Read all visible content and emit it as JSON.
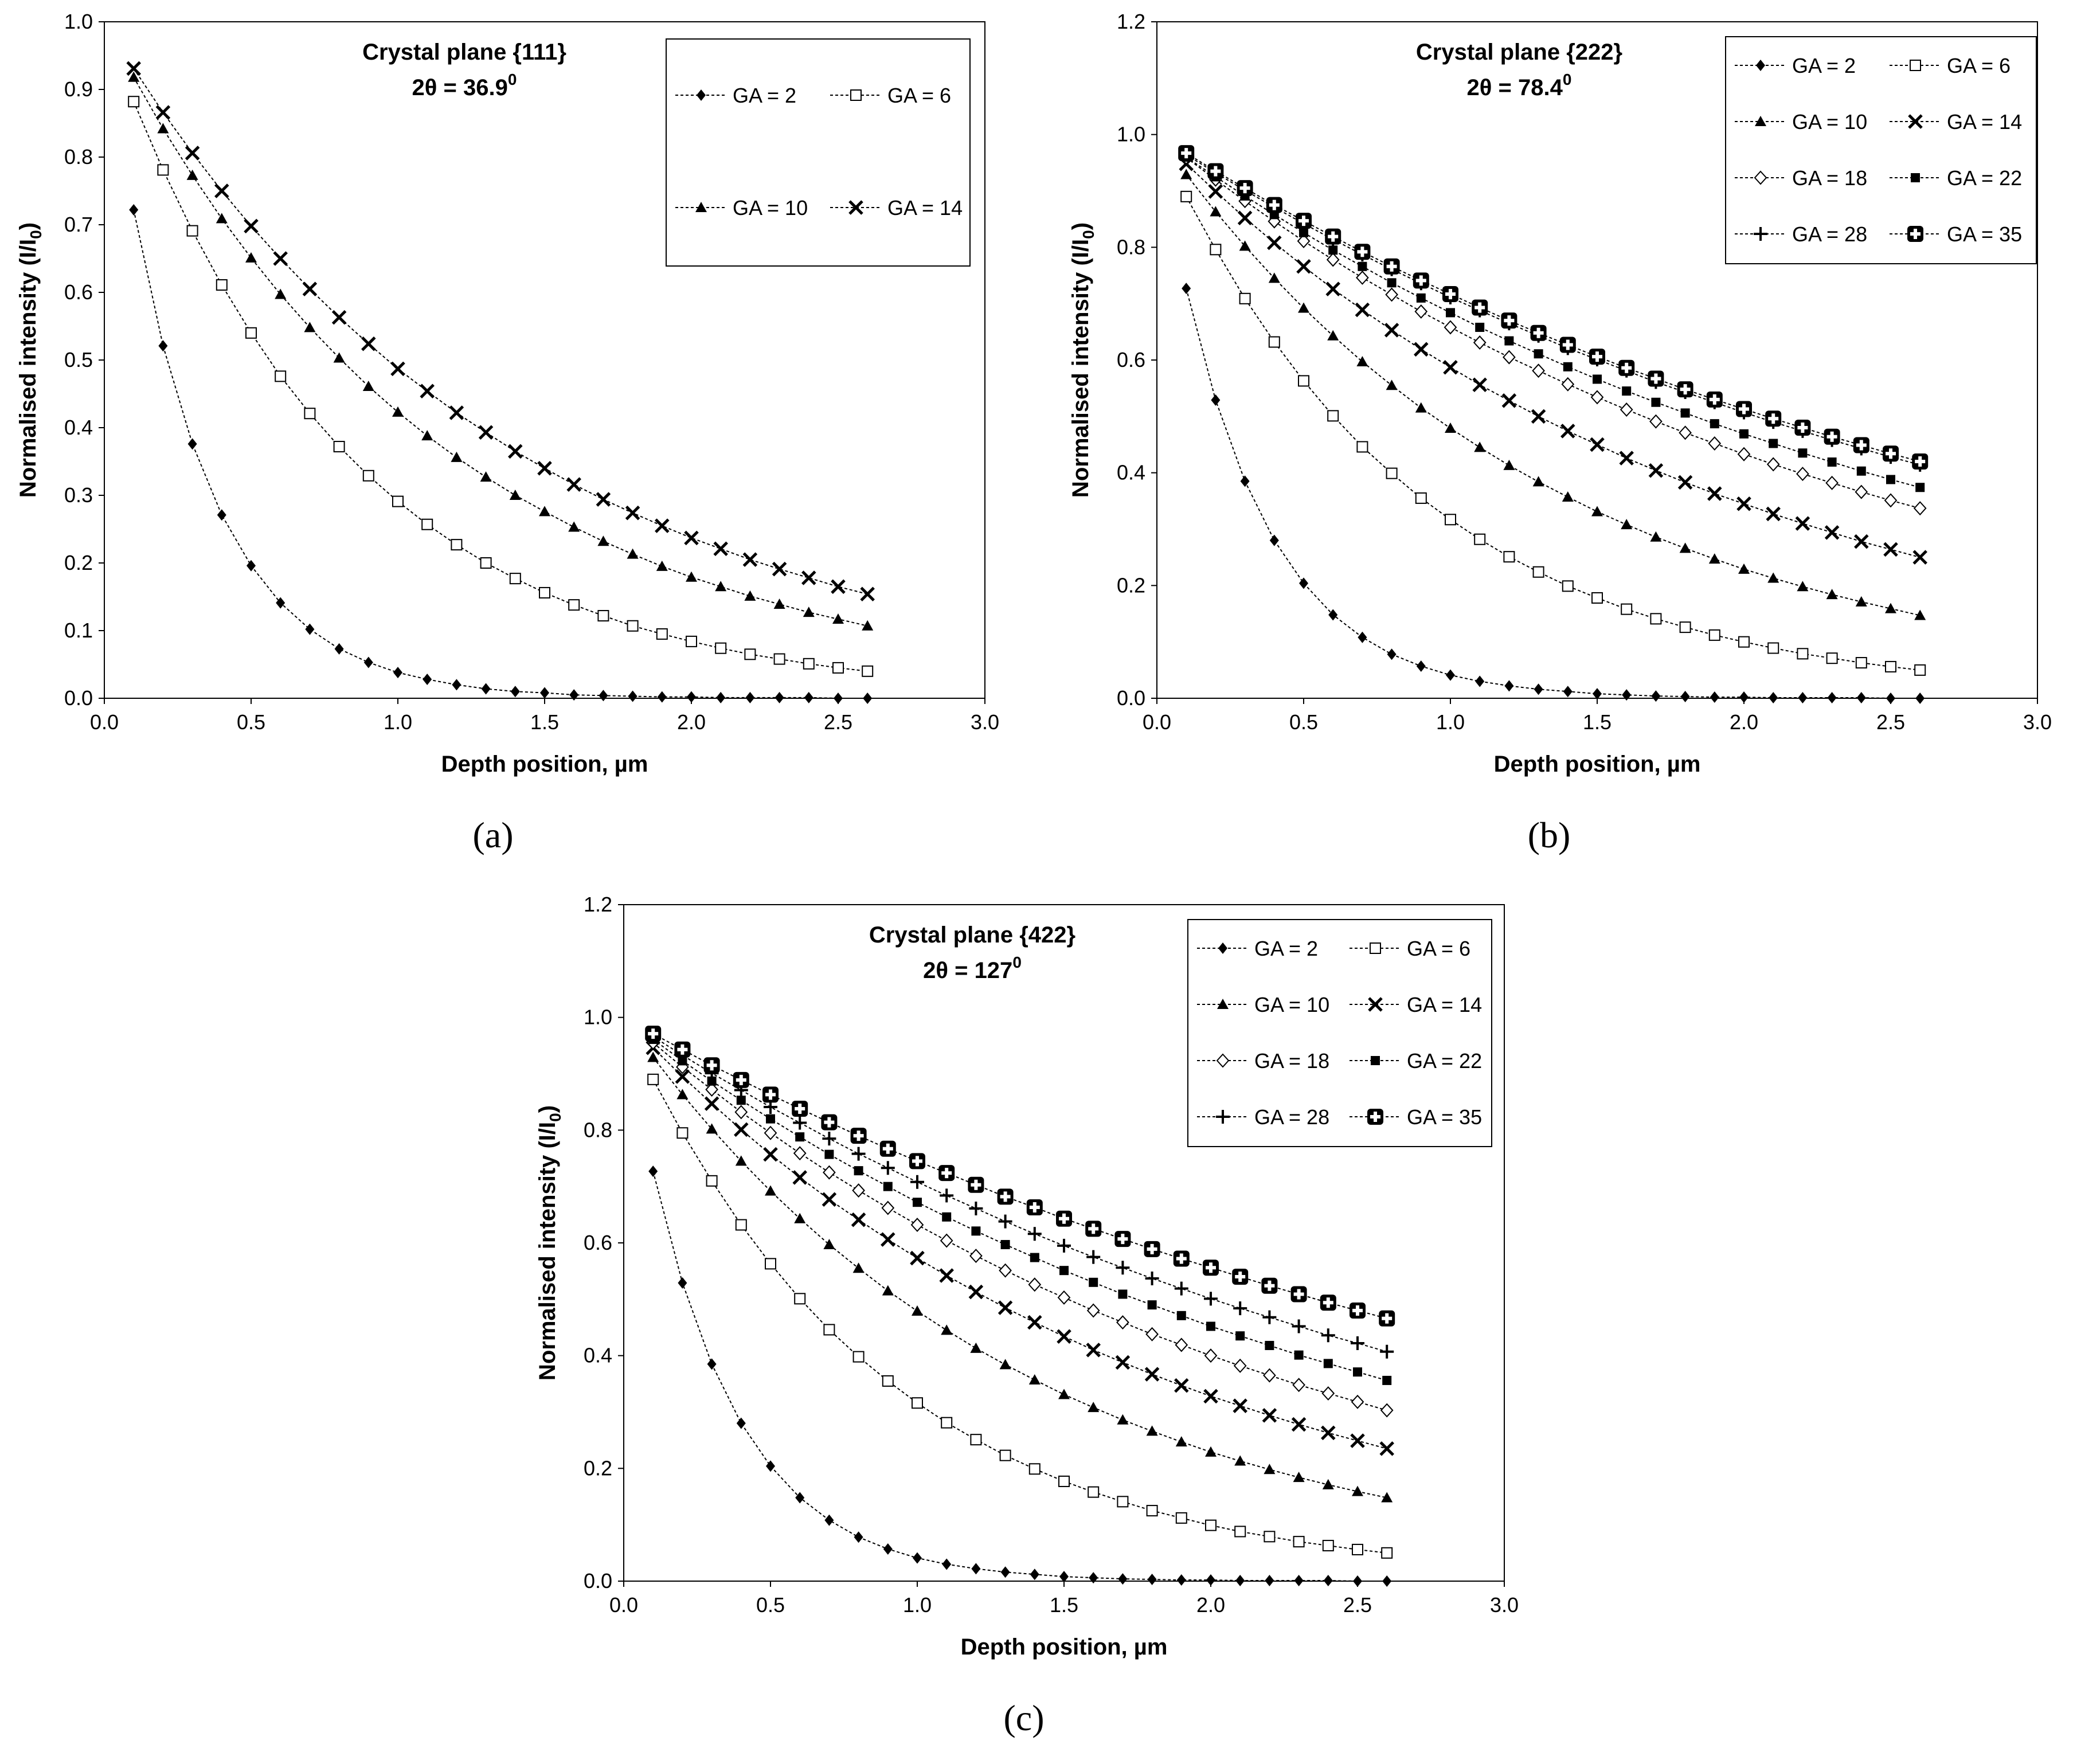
{
  "captions": [
    "(a)",
    "(b)",
    "(c)"
  ],
  "chart_data": [
    {
      "type": "line",
      "title": "Crystal plane {111}",
      "subtitle": "2θ = 36.9",
      "subtitle_sup": "0",
      "xlabel": "Depth position,  µm",
      "ylabel": "Normalised intensity (I/I",
      "ylabel_sub": "0",
      "ylabel_end": ")",
      "xlim": [
        0,
        3.0
      ],
      "ylim": [
        0,
        1.0
      ],
      "xticks": [
        "0.0",
        "0.5",
        "1.0",
        "1.5",
        "2.0",
        "2.5",
        "3.0"
      ],
      "yticks": [
        "0.0",
        "0.1",
        "0.2",
        "0.3",
        "0.4",
        "0.5",
        "0.6",
        "0.7",
        "0.8",
        "0.9",
        "1.0"
      ],
      "x": [
        0.1,
        0.2,
        0.3,
        0.4,
        0.5,
        0.6,
        0.7,
        0.8,
        0.9,
        1.0,
        1.1,
        1.2,
        1.3,
        1.4,
        1.5,
        1.6,
        1.7,
        1.8,
        1.9,
        2.0,
        2.1,
        2.2,
        2.3,
        2.4,
        2.5,
        2.6
      ],
      "series": [
        {
          "name": "GA = 2",
          "marker": "diamond",
          "values": [
            0.722,
            0.521,
            0.376,
            0.271,
            0.196,
            0.141,
            0.102,
            0.073,
            0.053,
            0.038,
            0.028,
            0.02,
            0.014,
            0.01,
            0.008,
            0.005,
            0.004,
            0.003,
            0.002,
            0.002,
            0.001,
            0.001,
            0.001,
            0.001,
            0.0,
            0.0
          ]
        },
        {
          "name": "GA = 6",
          "marker": "square-open",
          "values": [
            0.882,
            0.781,
            0.691,
            0.611,
            0.54,
            0.476,
            0.421,
            0.372,
            0.329,
            0.291,
            0.257,
            0.227,
            0.2,
            0.177,
            0.156,
            0.138,
            0.122,
            0.107,
            0.095,
            0.084,
            0.074,
            0.065,
            0.058,
            0.051,
            0.045,
            0.04
          ]
        },
        {
          "name": "GA = 10",
          "marker": "triangle",
          "values": [
            0.918,
            0.842,
            0.773,
            0.709,
            0.651,
            0.597,
            0.548,
            0.503,
            0.461,
            0.423,
            0.388,
            0.356,
            0.327,
            0.3,
            0.276,
            0.253,
            0.232,
            0.213,
            0.195,
            0.179,
            0.165,
            0.151,
            0.139,
            0.127,
            0.117,
            0.107
          ]
        },
        {
          "name": "GA = 14",
          "marker": "x",
          "values": [
            0.931,
            0.866,
            0.806,
            0.75,
            0.698,
            0.65,
            0.605,
            0.563,
            0.524,
            0.487,
            0.454,
            0.422,
            0.393,
            0.365,
            0.34,
            0.316,
            0.294,
            0.274,
            0.255,
            0.237,
            0.221,
            0.205,
            0.191,
            0.178,
            0.165,
            0.154
          ]
        }
      ]
    },
    {
      "type": "line",
      "title": "Crystal plane {222}",
      "subtitle": "2θ = 78.4",
      "subtitle_sup": "0",
      "xlabel": "Depth position,  µm",
      "ylabel": "Normalised intensity (I/I",
      "ylabel_sub": "0",
      "ylabel_end": ")",
      "xlim": [
        0,
        3.0
      ],
      "ylim": [
        0,
        1.2
      ],
      "xticks": [
        "0.0",
        "0.5",
        "1.0",
        "1.5",
        "2.0",
        "2.5",
        "3.0"
      ],
      "yticks": [
        "0.0",
        "0.2",
        "0.4",
        "0.6",
        "0.8",
        "1.0",
        "1.2"
      ],
      "x": [
        0.1,
        0.2,
        0.3,
        0.4,
        0.5,
        0.6,
        0.7,
        0.8,
        0.9,
        1.0,
        1.1,
        1.2,
        1.3,
        1.4,
        1.5,
        1.6,
        1.7,
        1.8,
        1.9,
        2.0,
        2.1,
        2.2,
        2.3,
        2.4,
        2.5,
        2.6
      ],
      "series": [
        {
          "name": "GA = 2",
          "marker": "diamond",
          "values": [
            0.727,
            0.529,
            0.385,
            0.28,
            0.204,
            0.148,
            0.108,
            0.078,
            0.057,
            0.041,
            0.03,
            0.022,
            0.016,
            0.012,
            0.008,
            0.006,
            0.004,
            0.003,
            0.002,
            0.002,
            0.001,
            0.001,
            0.001,
            0.001,
            0.0,
            0.0
          ]
        },
        {
          "name": "GA = 6",
          "marker": "square-open",
          "values": [
            0.89,
            0.796,
            0.709,
            0.632,
            0.563,
            0.501,
            0.446,
            0.399,
            0.355,
            0.317,
            0.282,
            0.251,
            0.224,
            0.199,
            0.178,
            0.158,
            0.141,
            0.126,
            0.112,
            0.1,
            0.089,
            0.079,
            0.071,
            0.063,
            0.056,
            0.05
          ]
        },
        {
          "name": "GA = 10",
          "marker": "triangle",
          "values": [
            0.929,
            0.863,
            0.802,
            0.745,
            0.692,
            0.643,
            0.597,
            0.555,
            0.515,
            0.479,
            0.445,
            0.413,
            0.384,
            0.357,
            0.331,
            0.308,
            0.286,
            0.266,
            0.247,
            0.229,
            0.213,
            0.198,
            0.184,
            0.171,
            0.159,
            0.147
          ]
        },
        {
          "name": "GA = 14",
          "marker": "x",
          "values": [
            0.948,
            0.899,
            0.852,
            0.808,
            0.766,
            0.726,
            0.689,
            0.653,
            0.619,
            0.587,
            0.556,
            0.528,
            0.5,
            0.474,
            0.45,
            0.426,
            0.404,
            0.383,
            0.363,
            0.345,
            0.327,
            0.31,
            0.294,
            0.278,
            0.264,
            0.25
          ]
        },
        {
          "name": "GA = 18",
          "marker": "diamond-open",
          "values": [
            0.959,
            0.92,
            0.882,
            0.846,
            0.811,
            0.778,
            0.746,
            0.716,
            0.686,
            0.658,
            0.631,
            0.605,
            0.581,
            0.557,
            0.534,
            0.512,
            0.491,
            0.471,
            0.452,
            0.433,
            0.415,
            0.398,
            0.382,
            0.366,
            0.351,
            0.337
          ]
        },
        {
          "name": "GA = 22",
          "marker": "square",
          "values": [
            0.96,
            0.925,
            0.891,
            0.858,
            0.826,
            0.795,
            0.766,
            0.737,
            0.71,
            0.684,
            0.658,
            0.634,
            0.611,
            0.588,
            0.566,
            0.545,
            0.525,
            0.506,
            0.487,
            0.469,
            0.452,
            0.435,
            0.419,
            0.403,
            0.388,
            0.374
          ]
        },
        {
          "name": "GA = 28",
          "marker": "plus",
          "values": [
            0.964,
            0.932,
            0.901,
            0.871,
            0.842,
            0.814,
            0.787,
            0.761,
            0.736,
            0.711,
            0.688,
            0.665,
            0.643,
            0.621,
            0.601,
            0.581,
            0.561,
            0.543,
            0.525,
            0.507,
            0.49,
            0.474,
            0.458,
            0.443,
            0.428,
            0.414
          ]
        },
        {
          "name": "GA = 35",
          "marker": "cross-bold",
          "values": [
            0.967,
            0.935,
            0.905,
            0.875,
            0.847,
            0.819,
            0.792,
            0.766,
            0.741,
            0.717,
            0.693,
            0.67,
            0.648,
            0.627,
            0.606,
            0.586,
            0.567,
            0.548,
            0.53,
            0.513,
            0.496,
            0.48,
            0.464,
            0.449,
            0.434,
            0.42
          ]
        }
      ]
    },
    {
      "type": "line",
      "title": "Crystal plane {422}",
      "subtitle": "2θ = 127",
      "subtitle_sup": "0",
      "xlabel": "Depth position,  µm",
      "ylabel": "Normalised intensity (I/I",
      "ylabel_sub": "0",
      "ylabel_end": ")",
      "xlim": [
        0,
        3.0
      ],
      "ylim": [
        0,
        1.2
      ],
      "xticks": [
        "0.0",
        "0.5",
        "1.0",
        "1.5",
        "2.0",
        "2.5",
        "3.0"
      ],
      "yticks": [
        "0.0",
        "0.2",
        "0.4",
        "0.6",
        "0.8",
        "1.0",
        "1.2"
      ],
      "x": [
        0.1,
        0.2,
        0.3,
        0.4,
        0.5,
        0.6,
        0.7,
        0.8,
        0.9,
        1.0,
        1.1,
        1.2,
        1.3,
        1.4,
        1.5,
        1.6,
        1.7,
        1.8,
        1.9,
        2.0,
        2.1,
        2.2,
        2.3,
        2.4,
        2.5,
        2.6
      ],
      "series": [
        {
          "name": "GA = 2",
          "marker": "diamond",
          "values": [
            0.727,
            0.529,
            0.385,
            0.28,
            0.204,
            0.148,
            0.108,
            0.078,
            0.057,
            0.041,
            0.03,
            0.022,
            0.016,
            0.012,
            0.008,
            0.006,
            0.004,
            0.003,
            0.002,
            0.002,
            0.001,
            0.001,
            0.001,
            0.001,
            0.0,
            0.0
          ]
        },
        {
          "name": "GA = 6",
          "marker": "square-open",
          "values": [
            0.89,
            0.795,
            0.71,
            0.632,
            0.563,
            0.501,
            0.446,
            0.398,
            0.355,
            0.316,
            0.281,
            0.251,
            0.223,
            0.199,
            0.177,
            0.158,
            0.141,
            0.125,
            0.112,
            0.099,
            0.088,
            0.079,
            0.07,
            0.063,
            0.056,
            0.05
          ]
        },
        {
          "name": "GA = 10",
          "marker": "triangle",
          "values": [
            0.929,
            0.863,
            0.802,
            0.745,
            0.692,
            0.643,
            0.597,
            0.555,
            0.515,
            0.479,
            0.445,
            0.413,
            0.384,
            0.357,
            0.331,
            0.308,
            0.286,
            0.266,
            0.247,
            0.229,
            0.213,
            0.198,
            0.184,
            0.171,
            0.159,
            0.148
          ]
        },
        {
          "name": "GA = 14",
          "marker": "x",
          "values": [
            0.946,
            0.895,
            0.847,
            0.801,
            0.757,
            0.716,
            0.677,
            0.641,
            0.606,
            0.573,
            0.542,
            0.513,
            0.485,
            0.459,
            0.434,
            0.41,
            0.388,
            0.367,
            0.347,
            0.328,
            0.311,
            0.294,
            0.278,
            0.263,
            0.249,
            0.235
          ]
        },
        {
          "name": "GA = 18",
          "marker": "diamond-open",
          "values": [
            0.955,
            0.912,
            0.872,
            0.832,
            0.795,
            0.759,
            0.725,
            0.693,
            0.662,
            0.632,
            0.604,
            0.577,
            0.551,
            0.526,
            0.503,
            0.48,
            0.459,
            0.438,
            0.419,
            0.4,
            0.382,
            0.365,
            0.348,
            0.333,
            0.318,
            0.303
          ]
        },
        {
          "name": "GA = 22",
          "marker": "square",
          "values": [
            0.961,
            0.923,
            0.887,
            0.853,
            0.82,
            0.788,
            0.757,
            0.728,
            0.7,
            0.672,
            0.646,
            0.621,
            0.597,
            0.574,
            0.551,
            0.53,
            0.509,
            0.49,
            0.471,
            0.452,
            0.435,
            0.418,
            0.401,
            0.386,
            0.371,
            0.356
          ]
        },
        {
          "name": "GA = 28",
          "marker": "plus",
          "values": [
            0.966,
            0.933,
            0.901,
            0.871,
            0.841,
            0.813,
            0.785,
            0.758,
            0.733,
            0.708,
            0.684,
            0.661,
            0.638,
            0.616,
            0.595,
            0.575,
            0.556,
            0.537,
            0.519,
            0.501,
            0.484,
            0.468,
            0.452,
            0.436,
            0.422,
            0.407
          ]
        },
        {
          "name": "GA = 35",
          "marker": "cross-bold",
          "values": [
            0.971,
            0.943,
            0.915,
            0.889,
            0.863,
            0.838,
            0.814,
            0.79,
            0.767,
            0.745,
            0.724,
            0.703,
            0.682,
            0.663,
            0.643,
            0.625,
            0.607,
            0.589,
            0.572,
            0.556,
            0.54,
            0.524,
            0.509,
            0.494,
            0.48,
            0.466
          ]
        }
      ]
    }
  ]
}
